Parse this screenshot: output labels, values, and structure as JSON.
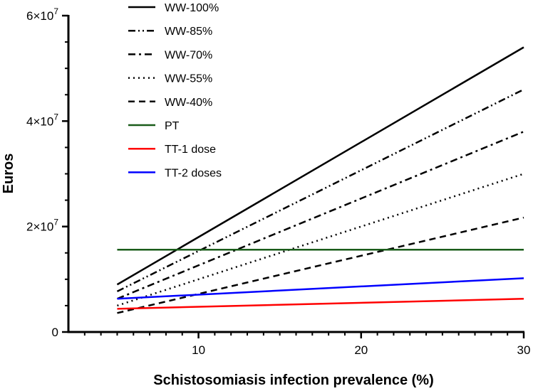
{
  "chart_data": {
    "type": "line",
    "title": "",
    "xlabel": "Schistosomiasis infection prevalence (%)",
    "ylabel": "Euros",
    "xlim": [
      2,
      30
    ],
    "ylim": [
      0,
      60000000
    ],
    "xticks": [
      10,
      20,
      30
    ],
    "xtick_labels": [
      "10",
      "20",
      "30"
    ],
    "yticks": [
      0,
      20000000,
      40000000,
      60000000
    ],
    "ytick_labels": [
      {
        "base": "0",
        "exp": ""
      },
      {
        "base": "2×10",
        "exp": "7"
      },
      {
        "base": "4×10",
        "exp": "7"
      },
      {
        "base": "6×10",
        "exp": "7"
      }
    ],
    "x": [
      5,
      30
    ],
    "series": [
      {
        "name": "WW-100%",
        "values": [
          9000000,
          54000000
        ],
        "color": "#000000",
        "dash": "solid"
      },
      {
        "name": "WW-85%",
        "values": [
          7700000,
          46000000
        ],
        "color": "#000000",
        "dash": "dashdotdot"
      },
      {
        "name": "WW-70%",
        "values": [
          6300000,
          38000000
        ],
        "color": "#000000",
        "dash": "dashdot"
      },
      {
        "name": "WW-55%",
        "values": [
          5000000,
          30000000
        ],
        "color": "#000000",
        "dash": "dotted"
      },
      {
        "name": "WW-40%",
        "values": [
          3600000,
          21700000
        ],
        "color": "#000000",
        "dash": "dashed"
      },
      {
        "name": "PT",
        "values": [
          15600000,
          15600000
        ],
        "color": "#1a5c1a",
        "dash": "solid"
      },
      {
        "name": "TT-1 dose",
        "values": [
          4400000,
          6300000
        ],
        "color": "#ff0000",
        "dash": "solid"
      },
      {
        "name": "TT-2 doses",
        "values": [
          6300000,
          10200000
        ],
        "color": "#0000ff",
        "dash": "solid"
      }
    ],
    "legend_position": "top-left"
  }
}
